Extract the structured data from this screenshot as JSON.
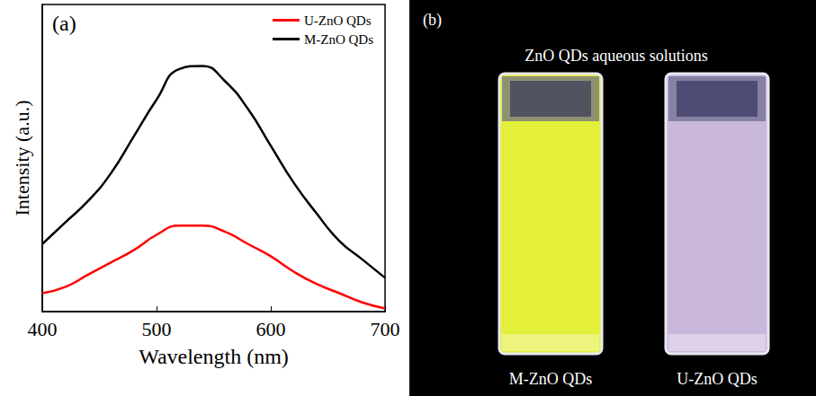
{
  "chart_data": {
    "type": "line",
    "x_label": "Wavelength (nm)",
    "y_label": "Intensity (a.u.)",
    "annotations": [
      "(a)"
    ],
    "x": [
      400,
      420,
      440,
      460,
      480,
      500,
      520,
      540,
      560,
      580,
      600,
      620,
      640,
      660,
      680,
      700
    ],
    "series": [
      {
        "name": "U-ZnO QDs",
        "color": "#ff0000",
        "values": [
          6,
          8,
          12,
          16,
          20,
          25,
          28,
          28,
          26,
          22,
          18,
          13,
          9,
          6,
          3,
          1
        ]
      },
      {
        "name": "M-ZnO QDs",
        "color": "#000000",
        "values": [
          22,
          29,
          36,
          45,
          57,
          69,
          79,
          80,
          75,
          66,
          54,
          42,
          32,
          23,
          17,
          11
        ]
      }
    ],
    "xlim": [
      400,
      700
    ],
    "xticks": [
      400,
      500,
      600,
      700
    ],
    "ylim": [
      0,
      100
    ],
    "tick_labels": "x",
    "grid": false,
    "legend": "upper right"
  },
  "panel_b": {
    "label": "(b)",
    "title": "ZnO QDs aqueous solutions",
    "samples": [
      {
        "label": "M-ZnO QDs",
        "color": "#e4ef3a"
      },
      {
        "label": "U-ZnO QDs",
        "color": "#c9b8dc"
      }
    ]
  }
}
